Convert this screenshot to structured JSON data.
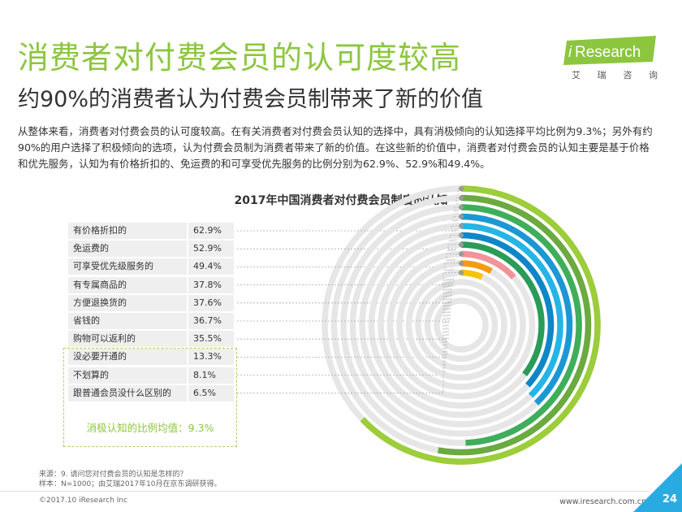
{
  "header": {
    "title": "消费者对付费会员的认可度较高",
    "subtitle": "约90%的消费者认为付费会员制带来了新的价值",
    "paragraph": "从整体来看，消费者对付费会员的认可度较高。在有关消费者对付费会员认知的选择中，具有消极倾向的认知选择平均比例为9.3%；另外有约90%的用户选择了积极倾向的选项，认为付费会员制为消费者带来了新的价值。在这些新的价值中，消费者对付费会员的认知主要是基于价格和优先服务，认知为有价格折扣的、免运费的和可享受优先服务的比例分别为62.9%、52.9%和49.4%。"
  },
  "logo": {
    "brand_i": "i",
    "brand_text": "Research",
    "tagline": [
      "艾",
      "瑞",
      "咨",
      "询"
    ]
  },
  "chart_data": {
    "type": "radial-bar",
    "title": "2017年中国消费者对付费会员制度的认知",
    "categories": [
      "有价格折扣的",
      "免运费的",
      "可享受优先级服务的",
      "有专属商品的",
      "方便退换货的",
      "省钱的",
      "购物可以返利的",
      "没必要开通的",
      "不划算的",
      "跟普通会员没什么区别的"
    ],
    "labels": [
      "62.9%",
      "52.9%",
      "49.4%",
      "37.8%",
      "37.6%",
      "36.7%",
      "35.5%",
      "13.3%",
      "8.1%",
      "6.5%"
    ],
    "values": [
      62.9,
      52.9,
      49.4,
      37.8,
      37.6,
      36.7,
      35.5,
      13.3,
      8.1,
      6.5
    ],
    "max": 100,
    "colors": [
      "#9ccd3a",
      "#6aaa3f",
      "#3fae5a",
      "#1b98d4",
      "#24b5e6",
      "#0e86c8",
      "#2a9c58",
      "#f0949a",
      "#f39c12",
      "#f5c400"
    ],
    "track_color": "#e6e6e6",
    "negative_average": "消极认知的比例均值：9.3%"
  },
  "footer": {
    "source": "来源：9. 请问您对付费会员的认知是怎样的？",
    "sample": "样本：N=1000；由艾瑞2017年10月在京东调研获得。",
    "copyright": "©2017.10 iResearch Inc",
    "url": "www.iresearch.com.cn",
    "page": "24"
  }
}
